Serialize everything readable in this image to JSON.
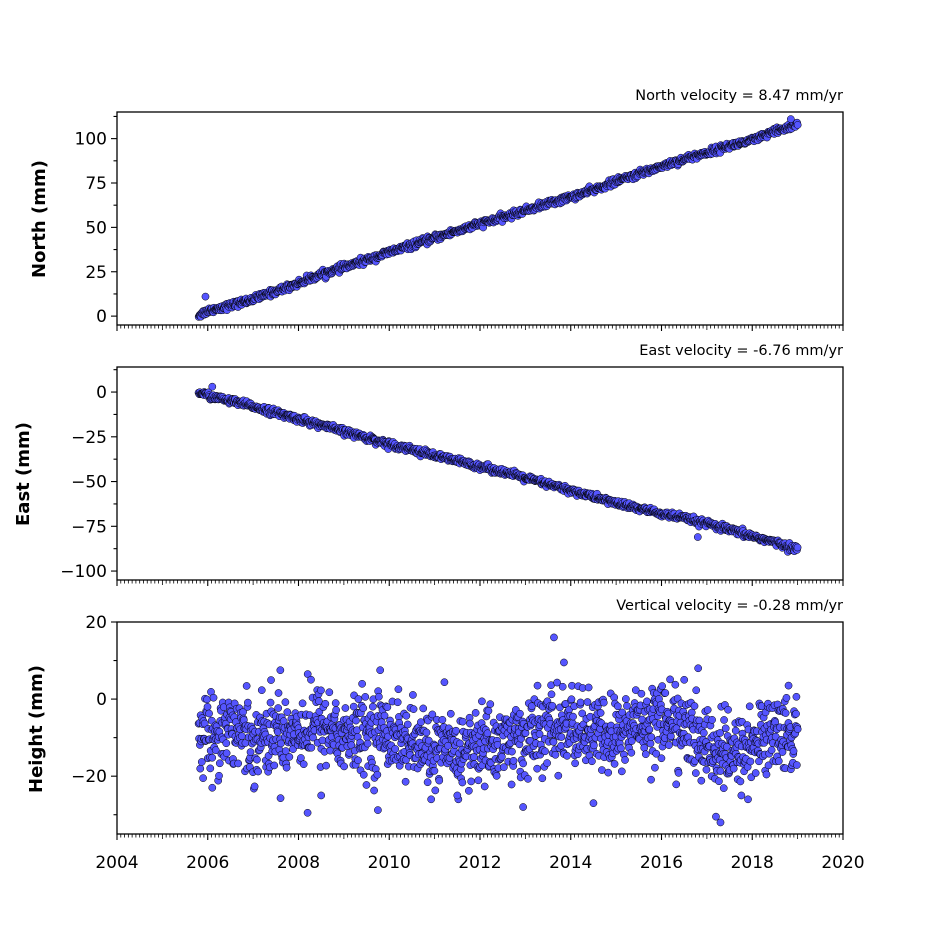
{
  "chart_data": [
    {
      "type": "scatter",
      "title": "North velocity = 8.47 mm/yr",
      "ylabel": "North (mm)",
      "xlim": [
        2004,
        2020
      ],
      "ylim": [
        -5,
        115
      ],
      "yticks": [
        0,
        25,
        50,
        75,
        100
      ],
      "grid": false,
      "marker_color": "#5555ff",
      "edge_color": "#000000",
      "series": [
        {
          "x": [
            2005.8,
            2006.0,
            2006.5,
            2007.0,
            2007.5,
            2008.0,
            2008.5,
            2009.0,
            2009.5,
            2010.0,
            2010.5,
            2011.0,
            2011.5,
            2012.0,
            2012.5,
            2013.0,
            2013.5,
            2014.0,
            2014.5,
            2015.0,
            2015.5,
            2016.0,
            2016.5,
            2017.0,
            2017.5,
            2018.0,
            2018.5,
            2019.0
          ],
          "y": [
            0.5,
            3.0,
            6.0,
            9.5,
            14.0,
            18.5,
            23.5,
            27.5,
            31.5,
            36.0,
            40.0,
            44.0,
            48.0,
            52.0,
            55.5,
            59.5,
            63.5,
            67.0,
            71.0,
            76.0,
            80.0,
            84.5,
            88.5,
            92.0,
            96.0,
            99.0,
            104.0,
            108.0
          ]
        }
      ],
      "outliers": [
        {
          "x": 2005.95,
          "y": 11.0
        },
        {
          "x": 2018.85,
          "y": 111.0
        }
      ]
    },
    {
      "type": "scatter",
      "title": "East velocity = -6.76 mm/yr",
      "ylabel": "East (mm)",
      "xlim": [
        2004,
        2020
      ],
      "ylim": [
        -105,
        14
      ],
      "yticks": [
        0,
        -25,
        -50,
        -75,
        -100
      ],
      "ytick_labels": [
        "0",
        "−25",
        "−50",
        "−75",
        "−100"
      ],
      "grid": false,
      "marker_color": "#5555ff",
      "edge_color": "#000000",
      "series": [
        {
          "x": [
            2005.8,
            2006.0,
            2006.5,
            2007.0,
            2007.5,
            2008.0,
            2008.5,
            2009.0,
            2009.5,
            2010.0,
            2010.5,
            2011.0,
            2011.5,
            2012.0,
            2012.5,
            2013.0,
            2013.5,
            2014.0,
            2014.5,
            2015.0,
            2015.5,
            2016.0,
            2016.5,
            2017.0,
            2017.5,
            2018.0,
            2018.5,
            2019.0
          ],
          "y": [
            0.0,
            -2.0,
            -5.0,
            -8.0,
            -11.5,
            -15.0,
            -18.5,
            -22.0,
            -25.5,
            -29.0,
            -32.0,
            -35.5,
            -38.5,
            -41.5,
            -44.5,
            -48.0,
            -51.5,
            -55.0,
            -58.5,
            -62.0,
            -65.0,
            -68.0,
            -70.5,
            -73.5,
            -77.0,
            -80.5,
            -84.0,
            -88.0
          ]
        }
      ],
      "outliers": [
        {
          "x": 2006.1,
          "y": 3.0
        },
        {
          "x": 2016.8,
          "y": -81.0
        }
      ]
    },
    {
      "type": "scatter",
      "title": "Vertical velocity = -0.28 mm/yr",
      "ylabel": "Height (mm)",
      "xlabel": "",
      "xlim": [
        2004,
        2020
      ],
      "ylim": [
        -35,
        20
      ],
      "yticks": [
        20,
        0,
        -20
      ],
      "ytick_labels": [
        "20",
        "0",
        "−20"
      ],
      "xticks": [
        2004,
        2006,
        2008,
        2010,
        2012,
        2014,
        2016,
        2018,
        2020
      ],
      "grid": false,
      "marker_color": "#5555ff",
      "edge_color": "#000000",
      "series": [
        {
          "x": [
            2005.8,
            2006.0,
            2006.5,
            2007.0,
            2007.5,
            2008.0,
            2008.5,
            2009.0,
            2009.5,
            2010.0,
            2010.5,
            2011.0,
            2011.5,
            2012.0,
            2012.5,
            2013.0,
            2013.5,
            2014.0,
            2014.5,
            2015.0,
            2015.5,
            2016.0,
            2016.5,
            2017.0,
            2017.5,
            2018.0,
            2018.5,
            2019.0
          ],
          "y": [
            -8,
            -9,
            -7,
            -10,
            -9,
            -8,
            -6,
            -10,
            -9,
            -8,
            -12,
            -13,
            -14,
            -12,
            -11,
            -10,
            -8,
            -7,
            -9,
            -10,
            -6,
            -5,
            -8,
            -12,
            -15,
            -12,
            -8,
            -10
          ],
          "spread": 5
        }
      ],
      "outliers": [
        {
          "x": 2013.63,
          "y": 16.0
        },
        {
          "x": 2013.85,
          "y": 9.5
        },
        {
          "x": 2009.8,
          "y": 7.5
        },
        {
          "x": 2007.6,
          "y": 7.5
        },
        {
          "x": 2008.2,
          "y": -29.5
        },
        {
          "x": 2009.75,
          "y": -28.8
        },
        {
          "x": 2012.95,
          "y": -28.0
        },
        {
          "x": 2014.5,
          "y": -27.0
        },
        {
          "x": 2017.3,
          "y": -32.0
        },
        {
          "x": 2017.2,
          "y": -30.5
        },
        {
          "x": 2011.5,
          "y": -25.0
        },
        {
          "x": 2006.1,
          "y": -23.0
        },
        {
          "x": 2008.5,
          "y": -25.0
        },
        {
          "x": 2016.5,
          "y": 5.0
        },
        {
          "x": 2018.8,
          "y": 3.5
        }
      ]
    }
  ]
}
